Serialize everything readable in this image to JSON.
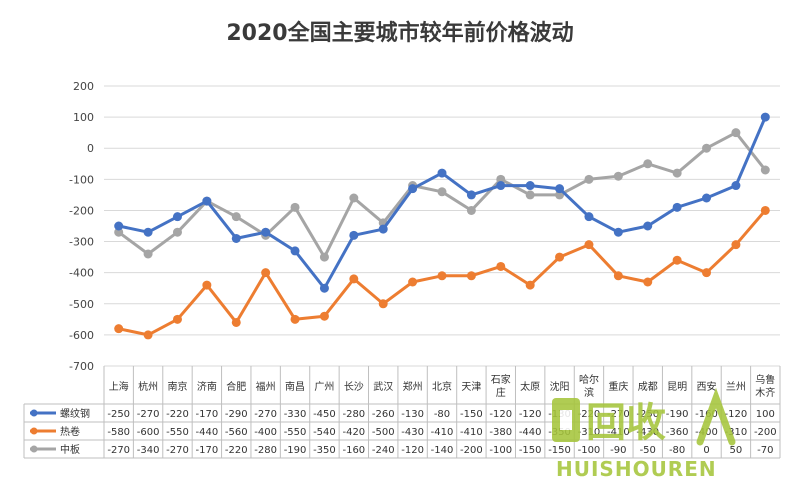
{
  "chart_data": {
    "type": "line",
    "title": "2020全国主要城市较年前价格波动",
    "ylim": [
      -700,
      200
    ],
    "yticks": [
      200,
      100,
      0,
      -100,
      -200,
      -300,
      -400,
      -500,
      -600,
      -700
    ],
    "grid": true,
    "legend": "table-left",
    "categories": [
      "上海",
      "杭州",
      "南京",
      "济南",
      "合肥",
      "福州",
      "南昌",
      "广州",
      "长沙",
      "武汉",
      "郑州",
      "北京",
      "天津",
      "石家庄",
      "太原",
      "沈阳",
      "哈尔滨",
      "重庆",
      "成都",
      "昆明",
      "西安",
      "兰州",
      "乌鲁木齐"
    ],
    "category_lines": [
      [
        "上海"
      ],
      [
        "杭州"
      ],
      [
        "南京"
      ],
      [
        "济南"
      ],
      [
        "合肥"
      ],
      [
        "福州"
      ],
      [
        "南昌"
      ],
      [
        "广州"
      ],
      [
        "长沙"
      ],
      [
        "武汉"
      ],
      [
        "郑州"
      ],
      [
        "北京"
      ],
      [
        "天津"
      ],
      [
        "石家",
        "庄"
      ],
      [
        "太原"
      ],
      [
        "沈阳"
      ],
      [
        "哈尔",
        "滨"
      ],
      [
        "重庆"
      ],
      [
        "成都"
      ],
      [
        "昆明"
      ],
      [
        "西安"
      ],
      [
        "兰州"
      ],
      [
        "乌鲁",
        "木齐"
      ]
    ],
    "series": [
      {
        "name": "螺纹钢",
        "color": "#4472c4",
        "values": [
          -250,
          -270,
          -220,
          -170,
          -290,
          -270,
          -330,
          -450,
          -280,
          -260,
          -130,
          -80,
          -150,
          -120,
          -120,
          -130,
          -220,
          -270,
          -250,
          -190,
          -160,
          -120,
          100
        ]
      },
      {
        "name": "热卷",
        "color": "#ed7d31",
        "values": [
          -580,
          -600,
          -550,
          -440,
          -560,
          -400,
          -550,
          -540,
          -420,
          -500,
          -430,
          -410,
          -410,
          -380,
          -440,
          -350,
          -310,
          -410,
          -430,
          -360,
          -400,
          -310,
          -200
        ]
      },
      {
        "name": "中板",
        "color": "#a5a5a5",
        "values": [
          -270,
          -340,
          -270,
          -170,
          -220,
          -280,
          -190,
          -350,
          -160,
          -240,
          -120,
          -140,
          -200,
          -100,
          -150,
          -150,
          -100,
          -90,
          -50,
          -80,
          0,
          50,
          -70
        ]
      }
    ]
  },
  "watermark": {
    "text": "回收",
    "subtext": "HUISHOUREN"
  }
}
